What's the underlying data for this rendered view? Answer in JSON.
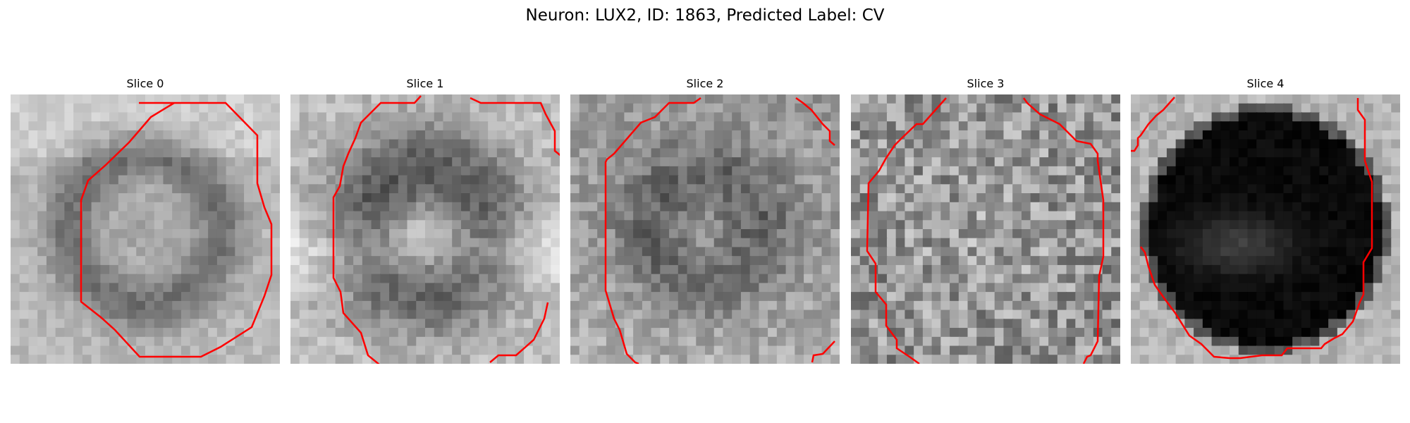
{
  "figure": {
    "title": "Neuron: LUX2, ID: 1863, Predicted Label: CV"
  },
  "slices": [
    {
      "label": "Slice 0"
    },
    {
      "label": "Slice 1"
    },
    {
      "label": "Slice 2"
    },
    {
      "label": "Slice 3"
    },
    {
      "label": "Slice 4"
    }
  ],
  "colors": {
    "contour": "#ff0000",
    "background": "#ffffff"
  },
  "image": {
    "colormap": "grayscale"
  }
}
